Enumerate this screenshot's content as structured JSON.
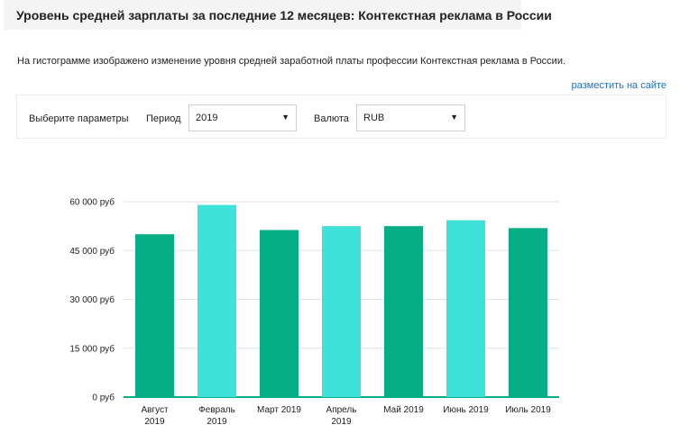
{
  "header": {
    "title": "Уровень средней зарплаты за последние 12 месяцев: Контекстная реклама в России"
  },
  "description": "На гистограмме изображено изменение уровня средней заработной платы профессии Контекстная реклама в России.",
  "embed_link": "разместить на сайте",
  "params": {
    "label": "Выберите параметры",
    "period_label": "Период",
    "period_value": "2019",
    "currency_label": "Валюта",
    "currency_value": "RUB",
    "arrow": "▼"
  },
  "colors": {
    "dark": "#05ae84",
    "light": "#3ee2d8",
    "grid": "#e2e2e2",
    "axis": "#05ae84"
  },
  "chart_data": {
    "type": "bar",
    "categories": [
      [
        "Август",
        "2019"
      ],
      [
        "Февраль",
        "2019"
      ],
      [
        "Март 2019"
      ],
      [
        "Апрель",
        "2019"
      ],
      [
        "Май 2019"
      ],
      [
        "Июнь 2019"
      ],
      [
        "Июль 2019"
      ]
    ],
    "values": [
      50000,
      59000,
      51300,
      52500,
      52500,
      54300,
      51900
    ],
    "yticks": [
      0,
      15000,
      30000,
      45000,
      60000
    ],
    "ytick_labels": [
      "0 руб",
      "15 000 руб",
      "30 000 руб",
      "45 000 руб",
      "60 000 руб"
    ],
    "ylim": [
      0,
      60000
    ],
    "bar_colors": [
      "dark",
      "light",
      "dark",
      "light",
      "dark",
      "light",
      "dark"
    ],
    "grid": true,
    "legend": "none",
    "xlabel": "",
    "ylabel": ""
  }
}
